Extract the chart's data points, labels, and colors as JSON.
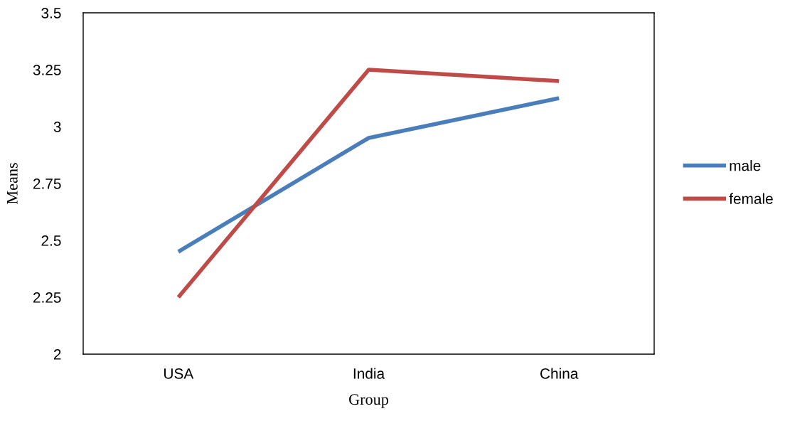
{
  "chart_data": {
    "type": "line",
    "xlabel": "Group",
    "ylabel": "Means",
    "categories": [
      "USA",
      "India",
      "China"
    ],
    "series": [
      {
        "name": "male",
        "color": "#4a7ebb",
        "values": [
          2.45,
          2.95,
          3.125
        ]
      },
      {
        "name": "female",
        "color": "#be4b48",
        "values": [
          2.25,
          3.25,
          3.2
        ]
      }
    ],
    "ylim": [
      2,
      3.5
    ],
    "yticks": [
      2,
      2.25,
      2.5,
      2.75,
      3,
      3.25,
      3.5
    ],
    "grid": false,
    "legend": "right",
    "marker": "none",
    "line_style": "solid"
  }
}
